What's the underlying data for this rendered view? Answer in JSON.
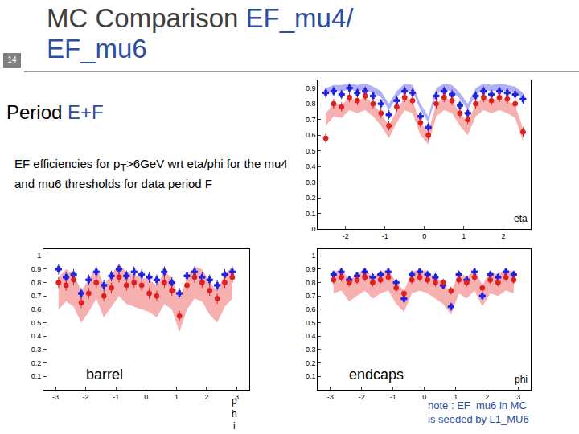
{
  "slide": {
    "number": "14",
    "title": {
      "text": "MC Comparison ",
      "highlight": [
        "EF_mu4/",
        "EF_mu6"
      ]
    },
    "subtitle": {
      "text": "Period ",
      "highlight": "E+F"
    },
    "body": {
      "before": "EF efficiencies for p",
      "subscript": "T",
      "after": ">6GeV wrt eta/phi for the mu4 and mu6 thresholds for data period F"
    },
    "note": [
      "note : EF_mu6 in MC",
      "is seeded by L1_MU6"
    ]
  },
  "chart_data": [
    {
      "type": "scatter",
      "xlabel": "eta",
      "grid": false,
      "xlim": [
        -2.7,
        2.7
      ],
      "xticks": [
        -2,
        -1,
        0,
        1,
        2
      ],
      "ylim": [
        0,
        0.95
      ],
      "yticks": [
        0,
        0.1,
        0.2,
        0.3,
        0.4,
        0.5,
        0.6,
        0.7,
        0.8,
        0.9
      ],
      "x": [
        -2.5,
        -2.3,
        -2.1,
        -1.9,
        -1.7,
        -1.5,
        -1.3,
        -1.1,
        -0.9,
        -0.7,
        -0.5,
        -0.3,
        -0.1,
        0.1,
        0.3,
        0.5,
        0.7,
        0.9,
        1.1,
        1.3,
        1.5,
        1.7,
        1.9,
        2.1,
        2.3,
        2.5
      ],
      "series": [
        {
          "type": "band",
          "color": "#7070f0",
          "values": [
            0.88,
            0.9,
            0.9,
            0.91,
            0.9,
            0.91,
            0.89,
            0.86,
            0.78,
            0.86,
            0.91,
            0.9,
            0.78,
            0.7,
            0.88,
            0.91,
            0.9,
            0.85,
            0.78,
            0.88,
            0.91,
            0.9,
            0.91,
            0.9,
            0.89,
            0.85
          ],
          "error": [
            0.02,
            0.02,
            0.02,
            0.02,
            0.02,
            0.02,
            0.02,
            0.02,
            0.02,
            0.02,
            0.02,
            0.02,
            0.02,
            0.02,
            0.02,
            0.02,
            0.02,
            0.02,
            0.02,
            0.02,
            0.02,
            0.02,
            0.02,
            0.02,
            0.02,
            0.02
          ]
        },
        {
          "type": "band",
          "color": "#f07070",
          "values": [
            0.7,
            0.76,
            0.75,
            0.8,
            0.78,
            0.8,
            0.76,
            0.7,
            0.62,
            0.72,
            0.8,
            0.78,
            0.64,
            0.58,
            0.76,
            0.8,
            0.78,
            0.7,
            0.64,
            0.76,
            0.8,
            0.78,
            0.8,
            0.78,
            0.75,
            0.6
          ],
          "error": [
            0.04,
            0.04,
            0.04,
            0.04,
            0.04,
            0.04,
            0.04,
            0.04,
            0.04,
            0.04,
            0.04,
            0.04,
            0.04,
            0.04,
            0.04,
            0.04,
            0.04,
            0.04,
            0.04,
            0.04,
            0.04,
            0.04,
            0.04,
            0.04,
            0.04,
            0.04
          ]
        },
        {
          "type": "scatter",
          "marker": "cross",
          "color": "#2020e0",
          "values": [
            0.87,
            0.88,
            0.86,
            0.9,
            0.87,
            0.88,
            0.85,
            0.8,
            0.73,
            0.82,
            0.88,
            0.87,
            0.72,
            0.65,
            0.85,
            0.88,
            0.86,
            0.79,
            0.74,
            0.85,
            0.88,
            0.86,
            0.88,
            0.87,
            0.86,
            0.83
          ],
          "error": [
            0.03,
            0.03,
            0.03,
            0.03,
            0.03,
            0.03,
            0.03,
            0.03,
            0.03,
            0.03,
            0.03,
            0.03,
            0.03,
            0.03,
            0.03,
            0.03,
            0.03,
            0.03,
            0.03,
            0.03,
            0.03,
            0.03,
            0.03,
            0.03,
            0.03,
            0.03
          ]
        },
        {
          "type": "scatter",
          "marker": "circle",
          "color": "#e02020",
          "values": [
            0.58,
            0.8,
            0.78,
            0.84,
            0.82,
            0.85,
            0.8,
            0.74,
            0.66,
            0.78,
            0.84,
            0.82,
            0.68,
            0.6,
            0.8,
            0.84,
            0.82,
            0.74,
            0.7,
            0.8,
            0.84,
            0.82,
            0.84,
            0.83,
            0.8,
            0.62
          ],
          "error": [
            0.03,
            0.03,
            0.03,
            0.03,
            0.03,
            0.03,
            0.03,
            0.03,
            0.03,
            0.03,
            0.03,
            0.03,
            0.03,
            0.03,
            0.03,
            0.03,
            0.03,
            0.03,
            0.03,
            0.03,
            0.03,
            0.03,
            0.03,
            0.03,
            0.03,
            0.03
          ]
        }
      ]
    },
    {
      "type": "scatter",
      "xlabel": "phi",
      "caption": "barrel",
      "grid": false,
      "xlim": [
        -3.4,
        3.4
      ],
      "xticks": [
        -3,
        -2,
        -1,
        0,
        1,
        2,
        3
      ],
      "ylim": [
        0,
        1.05
      ],
      "yticks": [
        0.1,
        0.2,
        0.3,
        0.4,
        0.5,
        0.6,
        0.7,
        0.8,
        0.9,
        1
      ],
      "x": [
        -2.9,
        -2.65,
        -2.4,
        -2.15,
        -1.9,
        -1.65,
        -1.4,
        -1.15,
        -0.9,
        -0.65,
        -0.4,
        -0.15,
        0.1,
        0.35,
        0.6,
        0.85,
        1.1,
        1.35,
        1.6,
        1.85,
        2.1,
        2.35,
        2.6,
        2.85
      ],
      "series": [
        {
          "type": "band",
          "color": "#f07070",
          "values": [
            0.72,
            0.78,
            0.74,
            0.62,
            0.7,
            0.8,
            0.66,
            0.74,
            0.82,
            0.76,
            0.74,
            0.72,
            0.7,
            0.66,
            0.76,
            0.72,
            0.55,
            0.72,
            0.8,
            0.78,
            0.68,
            0.62,
            0.74,
            0.8
          ],
          "error": [
            0.12,
            0.12,
            0.12,
            0.12,
            0.12,
            0.12,
            0.12,
            0.12,
            0.12,
            0.12,
            0.12,
            0.12,
            0.12,
            0.12,
            0.12,
            0.12,
            0.12,
            0.12,
            0.12,
            0.12,
            0.12,
            0.12,
            0.12,
            0.12
          ]
        },
        {
          "type": "scatter",
          "marker": "cross",
          "color": "#2020e0",
          "values": [
            0.9,
            0.84,
            0.86,
            0.72,
            0.82,
            0.88,
            0.78,
            0.85,
            0.9,
            0.85,
            0.88,
            0.86,
            0.84,
            0.82,
            0.88,
            0.8,
            0.72,
            0.85,
            0.88,
            0.84,
            0.82,
            0.78,
            0.86,
            0.88
          ],
          "error": [
            0.04,
            0.04,
            0.04,
            0.04,
            0.04,
            0.04,
            0.04,
            0.04,
            0.04,
            0.04,
            0.04,
            0.04,
            0.04,
            0.04,
            0.04,
            0.04,
            0.04,
            0.04,
            0.04,
            0.04,
            0.04,
            0.04,
            0.04,
            0.04
          ]
        },
        {
          "type": "scatter",
          "marker": "circle",
          "color": "#e02020",
          "values": [
            0.8,
            0.78,
            0.82,
            0.65,
            0.72,
            0.8,
            0.7,
            0.76,
            0.84,
            0.78,
            0.8,
            0.78,
            0.72,
            0.7,
            0.8,
            0.74,
            0.55,
            0.78,
            0.84,
            0.8,
            0.74,
            0.68,
            0.8,
            0.84
          ],
          "error": [
            0.04,
            0.04,
            0.04,
            0.04,
            0.04,
            0.04,
            0.04,
            0.04,
            0.04,
            0.04,
            0.04,
            0.04,
            0.04,
            0.04,
            0.04,
            0.04,
            0.04,
            0.04,
            0.04,
            0.04,
            0.04,
            0.04,
            0.04,
            0.04
          ]
        }
      ]
    },
    {
      "type": "scatter",
      "xlabel": "phi",
      "caption": "endcaps",
      "grid": false,
      "xlim": [
        -3.4,
        3.4
      ],
      "xticks": [
        -3,
        -2,
        -1,
        0,
        1,
        2,
        3
      ],
      "ylim": [
        0,
        1.05
      ],
      "yticks": [
        0.1,
        0.2,
        0.3,
        0.4,
        0.5,
        0.6,
        0.7,
        0.8,
        0.9,
        1
      ],
      "x": [
        -2.9,
        -2.65,
        -2.4,
        -2.15,
        -1.9,
        -1.65,
        -1.4,
        -1.15,
        -0.9,
        -0.65,
        -0.4,
        -0.15,
        0.1,
        0.35,
        0.6,
        0.85,
        1.1,
        1.35,
        1.6,
        1.85,
        2.1,
        2.35,
        2.6,
        2.85
      ],
      "series": [
        {
          "type": "band",
          "color": "#f07070",
          "values": [
            0.8,
            0.82,
            0.74,
            0.78,
            0.82,
            0.76,
            0.8,
            0.82,
            0.72,
            0.66,
            0.8,
            0.82,
            0.8,
            0.76,
            0.72,
            0.64,
            0.8,
            0.76,
            0.82,
            0.7,
            0.8,
            0.78,
            0.82,
            0.8
          ],
          "error": [
            0.08,
            0.08,
            0.08,
            0.08,
            0.08,
            0.08,
            0.08,
            0.08,
            0.08,
            0.08,
            0.08,
            0.08,
            0.08,
            0.08,
            0.08,
            0.08,
            0.08,
            0.08,
            0.08,
            0.08,
            0.08,
            0.08,
            0.08,
            0.08
          ]
        },
        {
          "type": "scatter",
          "marker": "cross",
          "color": "#2020e0",
          "values": [
            0.86,
            0.88,
            0.82,
            0.85,
            0.88,
            0.84,
            0.86,
            0.88,
            0.8,
            0.68,
            0.86,
            0.88,
            0.86,
            0.84,
            0.78,
            0.62,
            0.86,
            0.82,
            0.88,
            0.7,
            0.86,
            0.84,
            0.88,
            0.86
          ],
          "error": [
            0.03,
            0.03,
            0.03,
            0.03,
            0.03,
            0.03,
            0.03,
            0.03,
            0.03,
            0.03,
            0.03,
            0.03,
            0.03,
            0.03,
            0.03,
            0.03,
            0.03,
            0.03,
            0.03,
            0.03,
            0.03,
            0.03,
            0.03,
            0.03
          ]
        },
        {
          "type": "scatter",
          "marker": "circle",
          "color": "#e02020",
          "values": [
            0.82,
            0.84,
            0.8,
            0.82,
            0.84,
            0.8,
            0.82,
            0.84,
            0.76,
            0.72,
            0.82,
            0.84,
            0.82,
            0.8,
            0.8,
            0.74,
            0.82,
            0.8,
            0.84,
            0.76,
            0.82,
            0.8,
            0.84,
            0.82
          ],
          "error": [
            0.03,
            0.03,
            0.03,
            0.03,
            0.03,
            0.03,
            0.03,
            0.03,
            0.03,
            0.03,
            0.03,
            0.03,
            0.03,
            0.03,
            0.03,
            0.03,
            0.03,
            0.03,
            0.03,
            0.03,
            0.03,
            0.03,
            0.03,
            0.03
          ]
        }
      ]
    }
  ]
}
